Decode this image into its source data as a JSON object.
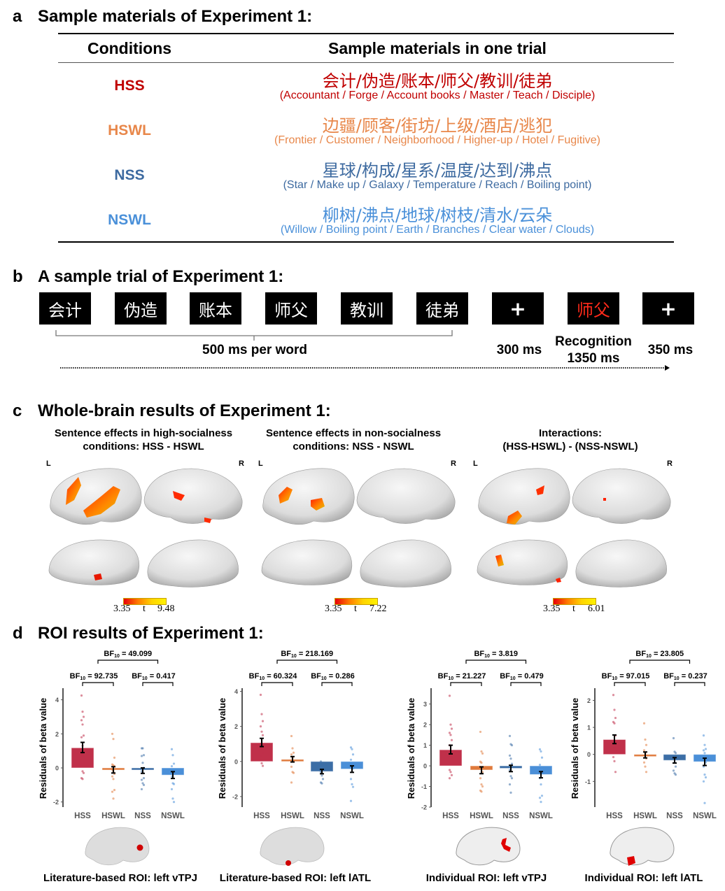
{
  "panel_a": {
    "letter": "a",
    "title": "Sample materials of Experiment 1:",
    "headers": {
      "conditions": "Conditions",
      "materials": "Sample materials in one trial"
    },
    "rows": [
      {
        "condition": "HSS",
        "color": "#c00000",
        "chinese": "会计/伪造/账本/师父/教训/徒弟",
        "english": "(Accountant / Forge / Account books / Master / Teach / Disciple)"
      },
      {
        "condition": "HSWL",
        "color": "#e8874a",
        "chinese": "边疆/顾客/街坊/上级/酒店/逃犯",
        "english": "(Frontier / Customer / Neighborhood / Higher-up / Hotel / Fugitive)"
      },
      {
        "condition": "NSS",
        "color": "#3d6aa0",
        "chinese": "星球/构成/星系/温度/达到/沸点",
        "english": "(Star / Make up / Galaxy / Temperature / Reach / Boiling point)"
      },
      {
        "condition": "NSWL",
        "color": "#4a90d9",
        "chinese": "柳树/沸点/地球/树枝/清水/云朵",
        "english": "(Willow / Boiling point / Earth / Branches / Clear water / Clouds)"
      }
    ]
  },
  "panel_b": {
    "letter": "b",
    "title": "A sample trial of Experiment 1:",
    "frames": [
      {
        "text": "会计",
        "color": "#ffffff"
      },
      {
        "text": "伪造",
        "color": "#ffffff"
      },
      {
        "text": "账本",
        "color": "#ffffff"
      },
      {
        "text": "师父",
        "color": "#ffffff"
      },
      {
        "text": "教训",
        "color": "#ffffff"
      },
      {
        "text": "徒弟",
        "color": "#ffffff"
      },
      {
        "text": "+",
        "color": "#ffffff"
      },
      {
        "text": "师父",
        "color": "#ff2a1a"
      },
      {
        "text": "+",
        "color": "#ffffff"
      }
    ],
    "word_duration": "500 ms per word",
    "fixation1": "300 ms",
    "recognition_line1": "Recognition",
    "recognition_line2": "1350 ms",
    "fixation2": "350 ms"
  },
  "panel_c": {
    "letter": "c",
    "title": "Whole-brain results of Experiment 1:",
    "maps": [
      {
        "subtitle_line1": "Sentence effects in high-socialness",
        "subtitle_line2": "conditions: HSS - HSWL",
        "left_label": "L",
        "right_label": "R",
        "t_min": "3.35",
        "t_label": "t",
        "t_max": "9.48"
      },
      {
        "subtitle_line1": "Sentence effects in non-socialness",
        "subtitle_line2": "conditions: NSS - NSWL",
        "left_label": "L",
        "right_label": "R",
        "t_min": "3.35",
        "t_label": "t",
        "t_max": "7.22"
      },
      {
        "subtitle_line1": "Interactions:",
        "subtitle_line2": "(HSS-HSWL) - (NSS-NSWL)",
        "left_label": "L",
        "right_label": "R",
        "t_min": "3.35",
        "t_label": "t",
        "t_max": "6.01"
      }
    ]
  },
  "panel_d": {
    "letter": "d",
    "title": "ROI results of Experiment 1:",
    "captions": [
      "Literature-based ROI: left vTPJ",
      "Literature-based ROI: left lATL",
      "Individual ROI: left vTPJ",
      "Individual ROI: left lATL"
    ]
  },
  "chart_data": [
    {
      "type": "bar",
      "title": "Literature-based ROI: left vTPJ",
      "ylabel": "Residuals of beta value",
      "categories": [
        "HSS",
        "HSWL",
        "NSS",
        "NSWL"
      ],
      "colors": [
        "#c0304a",
        "#e07a3c",
        "#3c6ea6",
        "#4a8fd8"
      ],
      "values": [
        1.18,
        -0.1,
        -0.12,
        -0.42
      ],
      "error_low": [
        0.9,
        -0.3,
        -0.32,
        -0.62
      ],
      "error_high": [
        1.5,
        0.07,
        0.0,
        -0.22
      ],
      "points": [
        [
          4.25,
          3.3,
          3.0,
          2.8,
          2.55,
          1.9,
          1.8,
          1.3,
          1.0,
          0.8,
          0.7,
          0.3,
          0.1,
          -0.2,
          -0.3,
          -0.6,
          -0.65
        ],
        [
          2.0,
          1.7,
          0.6,
          0.2,
          0.15,
          0.1,
          -0.1,
          -0.2,
          -0.35,
          -0.5,
          -0.65,
          -1.3,
          -1.4,
          -1.8
        ],
        [
          1.15,
          1.15,
          0.75,
          0.7,
          0.3,
          0.0,
          -0.2,
          -0.3,
          -0.6,
          -0.7,
          -0.9,
          -1.0,
          -1.25
        ],
        [
          1.1,
          0.75,
          0.25,
          0.1,
          -0.1,
          -0.2,
          -0.5,
          -0.9,
          -0.95,
          -1.25,
          -1.8,
          -2.0
        ]
      ],
      "yticks": [
        -2,
        0,
        2,
        4
      ],
      "ylim": [
        -2.3,
        4.6
      ],
      "bf_pairs": [
        {
          "label": "BF",
          "sub": "10",
          "value": "= 92.735",
          "between": [
            0,
            1
          ]
        },
        {
          "label": "BF",
          "sub": "10",
          "value": "= 0.417",
          "between": [
            2,
            3
          ]
        },
        {
          "label": "BF",
          "sub": "10",
          "value": "= 49.099",
          "between": [
            "0-1",
            "2-3"
          ]
        }
      ]
    },
    {
      "type": "bar",
      "title": "Literature-based ROI: left lATL",
      "ylabel": "Residuals of beta value",
      "categories": [
        "HSS",
        "HSWL",
        "NSS",
        "NSWL"
      ],
      "colors": [
        "#c0304a",
        "#e07a3c",
        "#3c6ea6",
        "#4a8fd8"
      ],
      "values": [
        1.07,
        0.12,
        -0.57,
        -0.43
      ],
      "error_low": [
        0.85,
        -0.03,
        -0.7,
        -0.62
      ],
      "error_high": [
        1.32,
        0.28,
        -0.45,
        -0.25
      ],
      "points": [
        [
          3.8,
          2.7,
          2.3,
          2.0,
          1.7,
          1.5,
          1.0,
          0.7,
          0.5,
          0.3,
          -0.1,
          -0.25
        ],
        [
          1.45,
          0.75,
          0.5,
          0.4,
          0.2,
          0.0,
          -0.3,
          -0.6,
          -0.65,
          -1.2
        ],
        [
          0.0,
          -0.2,
          -0.4,
          -0.6,
          -0.8,
          -1.0,
          -1.2,
          -1.25
        ],
        [
          0.8,
          0.7,
          0.4,
          0.1,
          -0.2,
          -0.4,
          -1.0,
          -1.3,
          -1.45,
          -2.25
        ]
      ],
      "yticks": [
        -2,
        0,
        2,
        4
      ],
      "ylim": [
        -2.6,
        4.1
      ],
      "bf_pairs": [
        {
          "label": "BF",
          "sub": "10",
          "value": "= 60.324",
          "between": [
            0,
            1
          ]
        },
        {
          "label": "BF",
          "sub": "10",
          "value": "= 0.286",
          "between": [
            2,
            3
          ]
        },
        {
          "label": "BF",
          "sub": "10",
          "value": "= 218.169",
          "between": [
            "0-1",
            "2-3"
          ]
        }
      ]
    },
    {
      "type": "bar",
      "title": "Individual ROI: left vTPJ",
      "ylabel": "Residuals of beta value",
      "categories": [
        "HSS",
        "HSWL",
        "NSS",
        "NSWL"
      ],
      "colors": [
        "#c0304a",
        "#e07a3c",
        "#3c6ea6",
        "#4a8fd8"
      ],
      "values": [
        0.78,
        -0.2,
        -0.12,
        -0.42
      ],
      "error_low": [
        0.58,
        -0.38,
        -0.28,
        -0.58
      ],
      "error_high": [
        1.0,
        -0.05,
        0.03,
        -0.28
      ],
      "points": [
        [
          3.4,
          2.0,
          1.8,
          1.6,
          1.5,
          1.25,
          1.0,
          0.5,
          0.4,
          -0.2,
          -0.3,
          -0.45,
          -0.6
        ],
        [
          1.65,
          0.7,
          0.6,
          0.2,
          0.15,
          -0.3,
          -0.6,
          -0.9,
          -1.0,
          -1.2,
          -1.25
        ],
        [
          1.45,
          1.05,
          1.0,
          0.5,
          0.35,
          0.1,
          -0.2,
          -0.5,
          -0.6,
          -0.9,
          -1.3
        ],
        [
          0.8,
          0.7,
          0.4,
          0.05,
          -0.1,
          -0.3,
          -0.6,
          -0.9,
          -1.45,
          -1.55,
          -1.75
        ]
      ],
      "yticks": [
        -2,
        -1,
        0,
        1,
        2,
        3
      ],
      "ylim": [
        -2.0,
        3.7
      ],
      "bf_pairs": [
        {
          "label": "BF",
          "sub": "10",
          "value": "= 21.227",
          "between": [
            0,
            1
          ]
        },
        {
          "label": "BF",
          "sub": "10",
          "value": "= 0.479",
          "between": [
            2,
            3
          ]
        },
        {
          "label": "BF",
          "sub": "10",
          "value": "= 3.819",
          "between": [
            "0-1",
            "2-3"
          ]
        }
      ]
    },
    {
      "type": "bar",
      "title": "Individual ROI: left lATL",
      "ylabel": "Residuals of beta value",
      "categories": [
        "HSS",
        "HSWL",
        "NSS",
        "NSWL"
      ],
      "colors": [
        "#c0304a",
        "#e07a3c",
        "#3c6ea6",
        "#4a8fd8"
      ],
      "values": [
        0.55,
        -0.02,
        -0.22,
        -0.27
      ],
      "error_low": [
        0.4,
        -0.13,
        -0.32,
        -0.41
      ],
      "error_high": [
        0.72,
        0.09,
        -0.12,
        -0.14
      ],
      "points": [
        [
          2.2,
          1.65,
          1.35,
          1.2,
          1.15,
          0.7,
          0.5,
          0.25,
          0.1,
          -0.1,
          -0.25,
          -0.65
        ],
        [
          1.15,
          0.55,
          0.35,
          0.15,
          0.05,
          -0.15,
          -0.3,
          -0.45,
          -0.65
        ],
        [
          0.6,
          0.1,
          0.05,
          -0.1,
          -0.3,
          -0.45,
          -0.6,
          -0.7,
          -0.75
        ],
        [
          0.7,
          0.35,
          0.2,
          0.15,
          0.05,
          -0.3,
          -0.45,
          -0.75,
          -0.85,
          -1.0,
          -1.8
        ]
      ],
      "yticks": [
        -1,
        0,
        1,
        2
      ],
      "ylim": [
        -1.95,
        2.4
      ],
      "bf_pairs": [
        {
          "label": "BF",
          "sub": "10",
          "value": "= 97.015",
          "between": [
            0,
            1
          ]
        },
        {
          "label": "BF",
          "sub": "10",
          "value": "= 0.237",
          "between": [
            2,
            3
          ]
        },
        {
          "label": "BF",
          "sub": "10",
          "value": "= 23.805",
          "between": [
            "0-1",
            "2-3"
          ]
        }
      ]
    }
  ]
}
